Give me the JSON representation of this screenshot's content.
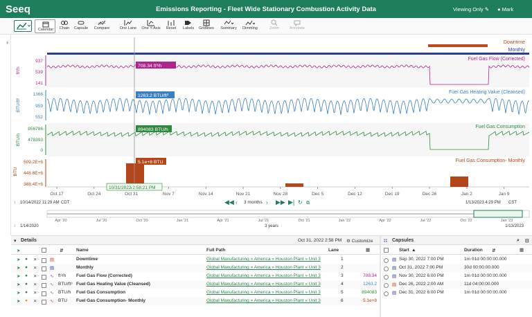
{
  "app": {
    "logo_text": "Seeq",
    "title": "Emissions Reporting - Fleet Wide Stationary Combustion Activity Data",
    "viewing_mode": "Viewing Only",
    "user": "Mark",
    "brand_color": "#1e7d5b"
  },
  "toolbar": {
    "calendar": "Calendar",
    "chain": "Chain",
    "capsule": "Capsule",
    "compare": "Compare",
    "one_lane": "One Lane",
    "one_y_axis": "One Y-Axis",
    "reset": "Reset",
    "labels": "Labels",
    "gridlines": "Gridlines",
    "summary": "Summary",
    "dimming": "Dimming",
    "zoom": "Zoom",
    "annotate": "Annotate"
  },
  "trend": {
    "lanes": {
      "downtime": "Downtime",
      "monthly": "Monthly",
      "flow": "Fuel Gas Flow (Corrected)",
      "heating": "Fuel Gas Heating Value (Cleansed)",
      "consumption": "Fuel Gas Consumption",
      "consumption_monthly": "Fuel Gas Consumption- Monthly"
    },
    "axes": {
      "flow_unit": "ft³/h",
      "flow_ticks": [
        "937",
        "539",
        "141"
      ],
      "heating_unit": "BTU/ft³",
      "heating_ticks": [
        "1366",
        "959",
        "552"
      ],
      "consumption_unit": "BTU/h",
      "consumption_ticks": [
        "956786",
        "478393",
        "0"
      ],
      "monthly_unit": "BTU",
      "monthly_ticks": [
        "509.2E+6",
        "448.8E+6",
        "388.4E+6"
      ]
    },
    "cursor": {
      "flow": "708.34 ft³/h",
      "heating": "1263.2 BTU/ft³",
      "consumption": "894083 BTU/h",
      "monthly": "5.1e+8 BTU",
      "time": "10/31/2022 2:58:21 PM"
    },
    "x_ticks": [
      "Oct 17",
      "Oct 24",
      "Oct 31",
      "Nov 7",
      "Nov 14",
      "Nov 21",
      "Nov 28",
      "Dec 5",
      "Dec 12",
      "Dec 19",
      "Dec 26",
      "Jan 2",
      "Jan 9"
    ],
    "colors": {
      "flow": "#b0248c",
      "heating": "#3a7fc4",
      "consumption": "#2e8b3e",
      "monthly": "#b5451b",
      "downtime": "#c0461c",
      "monthly_capsule": "#2b3f8c"
    }
  },
  "timebar": {
    "start": "10/14/2022 11:29 AM",
    "start_tz": "CDT",
    "duration": "3 months",
    "end": "1/13/2023 4:29 PM",
    "end_tz": "CST"
  },
  "overview": {
    "ticks": [
      "Apr '20",
      "Jul '20",
      "Oct '20",
      "Jan '21",
      "Apr '21",
      "Jul '21",
      "Oct '21",
      "Jan '22",
      "Apr '22",
      "Jul '22",
      "Oct '22",
      "Jan '23"
    ],
    "start": "1/14/2020",
    "duration": "3 years",
    "end": "1/13/2023"
  },
  "details": {
    "title": "Details",
    "cursor_time": "Oct 31, 2022 2:58 PM",
    "customize": "Customize",
    "columns": {
      "name": "Name",
      "path": "Full Path",
      "lane": "Lane"
    },
    "rows": [
      {
        "unit": "",
        "name": "Downtime",
        "path": "Global Manufacturing » America » Houston Plant » Unit 3",
        "lane": "1",
        "value": "",
        "color": "#c0461c",
        "kind": "capsule"
      },
      {
        "unit": "",
        "name": "Monthly",
        "path": "Global Manufacturing » America » Houston Plant » Unit 3",
        "lane": "2",
        "value": "",
        "color": "#2b3f8c",
        "kind": "capsule"
      },
      {
        "unit": "ft³/h",
        "name": "Fuel Gas Flow (Corrected)",
        "path": "Global Manufacturing » America » Houston Plant » Unit 3",
        "lane": "3",
        "value": "708.34",
        "color": "#b0248c",
        "kind": "signal"
      },
      {
        "unit": "BTU/ft³",
        "name": "Fuel Gas Heating Value (Cleansed)",
        "path": "Global Manufacturing » America » Houston Plant » Unit 3",
        "lane": "4",
        "value": "1263.2",
        "color": "#3a7fc4",
        "kind": "signal"
      },
      {
        "unit": "BTU/h",
        "name": "Fuel Gas Consumption",
        "path": "Global Manufacturing » America » Houston Plant » Unit 3",
        "lane": "5",
        "value": "894083",
        "color": "#2e8b3e",
        "kind": "signal"
      },
      {
        "unit": "BTU",
        "name": "Fuel Gas Consumption- Monthly",
        "path": "Global Manufacturing » America » Houston Plant » Unit 3",
        "lane": "6",
        "value": "5.1e+8",
        "color": "#b5451b",
        "kind": "signal"
      }
    ]
  },
  "capsules": {
    "title": "Capsules",
    "columns": {
      "start": "Start",
      "duration": "Duration"
    },
    "rows": [
      {
        "start": "Sep 30, 2022 7:00 PM",
        "duration": "1m 01d 00:00:00.000",
        "color": "#2b3f8c"
      },
      {
        "start": "Oct 31, 2022 7:00 PM",
        "duration": "30d 00:00:00.000",
        "color": "#2b3f8c"
      },
      {
        "start": "Nov 30, 2022 6:00 PM",
        "duration": "1m 01d 00:00:00.000",
        "color": "#2b3f8c"
      },
      {
        "start": "Dec 26, 2022 2:00 AM",
        "duration": "11d 04:00:00.000",
        "color": "#c0461c"
      },
      {
        "start": "Dec 31, 2022 6:00 PM",
        "duration": "1m 01d 00:00:00.000",
        "color": "#2b3f8c"
      }
    ]
  }
}
